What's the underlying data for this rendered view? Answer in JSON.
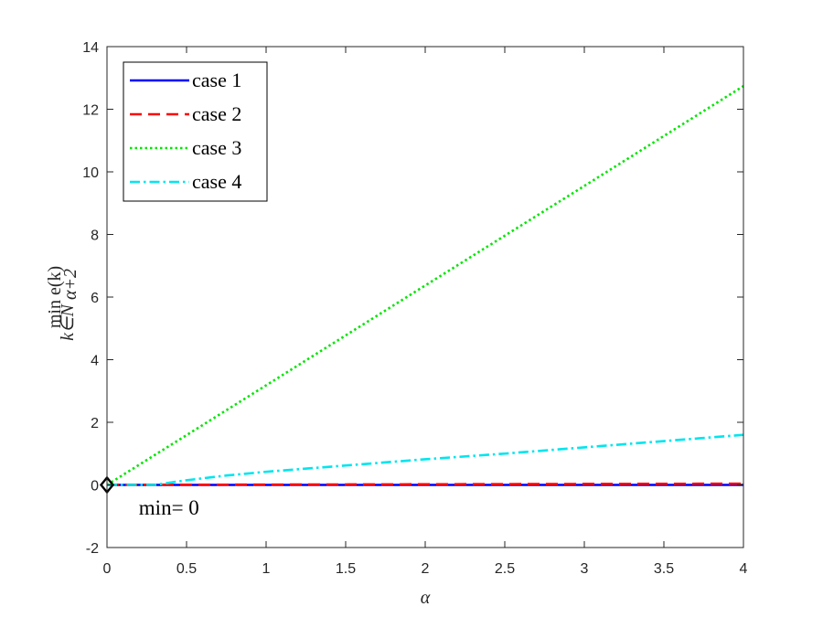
{
  "chart_data": {
    "type": "line",
    "title": "",
    "xlabel": "α",
    "ylabel_main": "min e(k)",
    "ylabel_sub": "k∈N",
    "ylabel_subsub": "α+2",
    "xlim": [
      0,
      4
    ],
    "ylim": [
      -2,
      14
    ],
    "xticks": [
      0,
      0.5,
      1,
      1.5,
      2,
      2.5,
      3,
      3.5,
      4
    ],
    "xtick_labels": [
      "0",
      "0.5",
      "1",
      "1.5",
      "2",
      "2.5",
      "3",
      "3.5",
      "4"
    ],
    "yticks": [
      -2,
      0,
      2,
      4,
      6,
      8,
      10,
      12,
      14
    ],
    "ytick_labels": [
      "-2",
      "0",
      "2",
      "4",
      "6",
      "8",
      "10",
      "12",
      "14"
    ],
    "grid": false,
    "legend_position": "top-left",
    "series": [
      {
        "name": "case 1",
        "color": "#0000ff",
        "style": "solid",
        "x": [
          0,
          4
        ],
        "y": [
          0,
          0
        ]
      },
      {
        "name": "case 2",
        "color": "#ff0000",
        "style": "dashed",
        "x": [
          0,
          1,
          2,
          3,
          4
        ],
        "y": [
          0,
          0.01,
          0.02,
          0.03,
          0.04
        ]
      },
      {
        "name": "case 3",
        "color": "#00e600",
        "style": "dotted",
        "x": [
          0,
          1,
          2,
          3,
          4
        ],
        "y": [
          0,
          3.18,
          6.37,
          9.55,
          12.74
        ]
      },
      {
        "name": "case 4",
        "color": "#00e5ee",
        "style": "dashdot",
        "x": [
          0,
          0.3,
          0.5,
          0.75,
          1,
          1.5,
          2,
          2.5,
          3,
          3.5,
          4
        ],
        "y": [
          0,
          0,
          0.15,
          0.3,
          0.42,
          0.62,
          0.82,
          1.0,
          1.2,
          1.4,
          1.6
        ]
      }
    ],
    "marker": {
      "shape": "diamond",
      "x": 0,
      "y": 0
    },
    "annotation": {
      "text": "min= 0",
      "x": 0.2,
      "y": -0.95
    }
  }
}
